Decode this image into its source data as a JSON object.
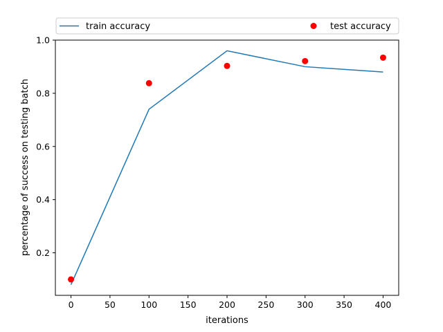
{
  "chart_data": {
    "type": "line",
    "xlabel": "iterations",
    "ylabel": "percentage of success on testing batch",
    "xlim": [
      -20,
      420
    ],
    "ylim": [
      0.04,
      1.0
    ],
    "xticks": [
      0,
      50,
      100,
      150,
      200,
      250,
      300,
      350,
      400
    ],
    "yticks": [
      0.2,
      0.4,
      0.6,
      0.8,
      1.0
    ],
    "xtick_labels": [
      "0",
      "50",
      "100",
      "150",
      "200",
      "250",
      "300",
      "350",
      "400"
    ],
    "ytick_labels": [
      "0.2",
      "0.4",
      "0.6",
      "0.8",
      "1.0"
    ],
    "grid": false,
    "legend_position": "top",
    "series": [
      {
        "name": "train accuracy",
        "type": "line",
        "color": "#1f77b4",
        "x": [
          0,
          100,
          200,
          300,
          400
        ],
        "y": [
          0.08,
          0.74,
          0.96,
          0.9,
          0.88
        ]
      },
      {
        "name": "test accuracy",
        "type": "scatter",
        "color": "#ff0000",
        "x": [
          0,
          100,
          200,
          300,
          400
        ],
        "y": [
          0.1,
          0.838,
          0.903,
          0.921,
          0.934
        ]
      }
    ]
  }
}
